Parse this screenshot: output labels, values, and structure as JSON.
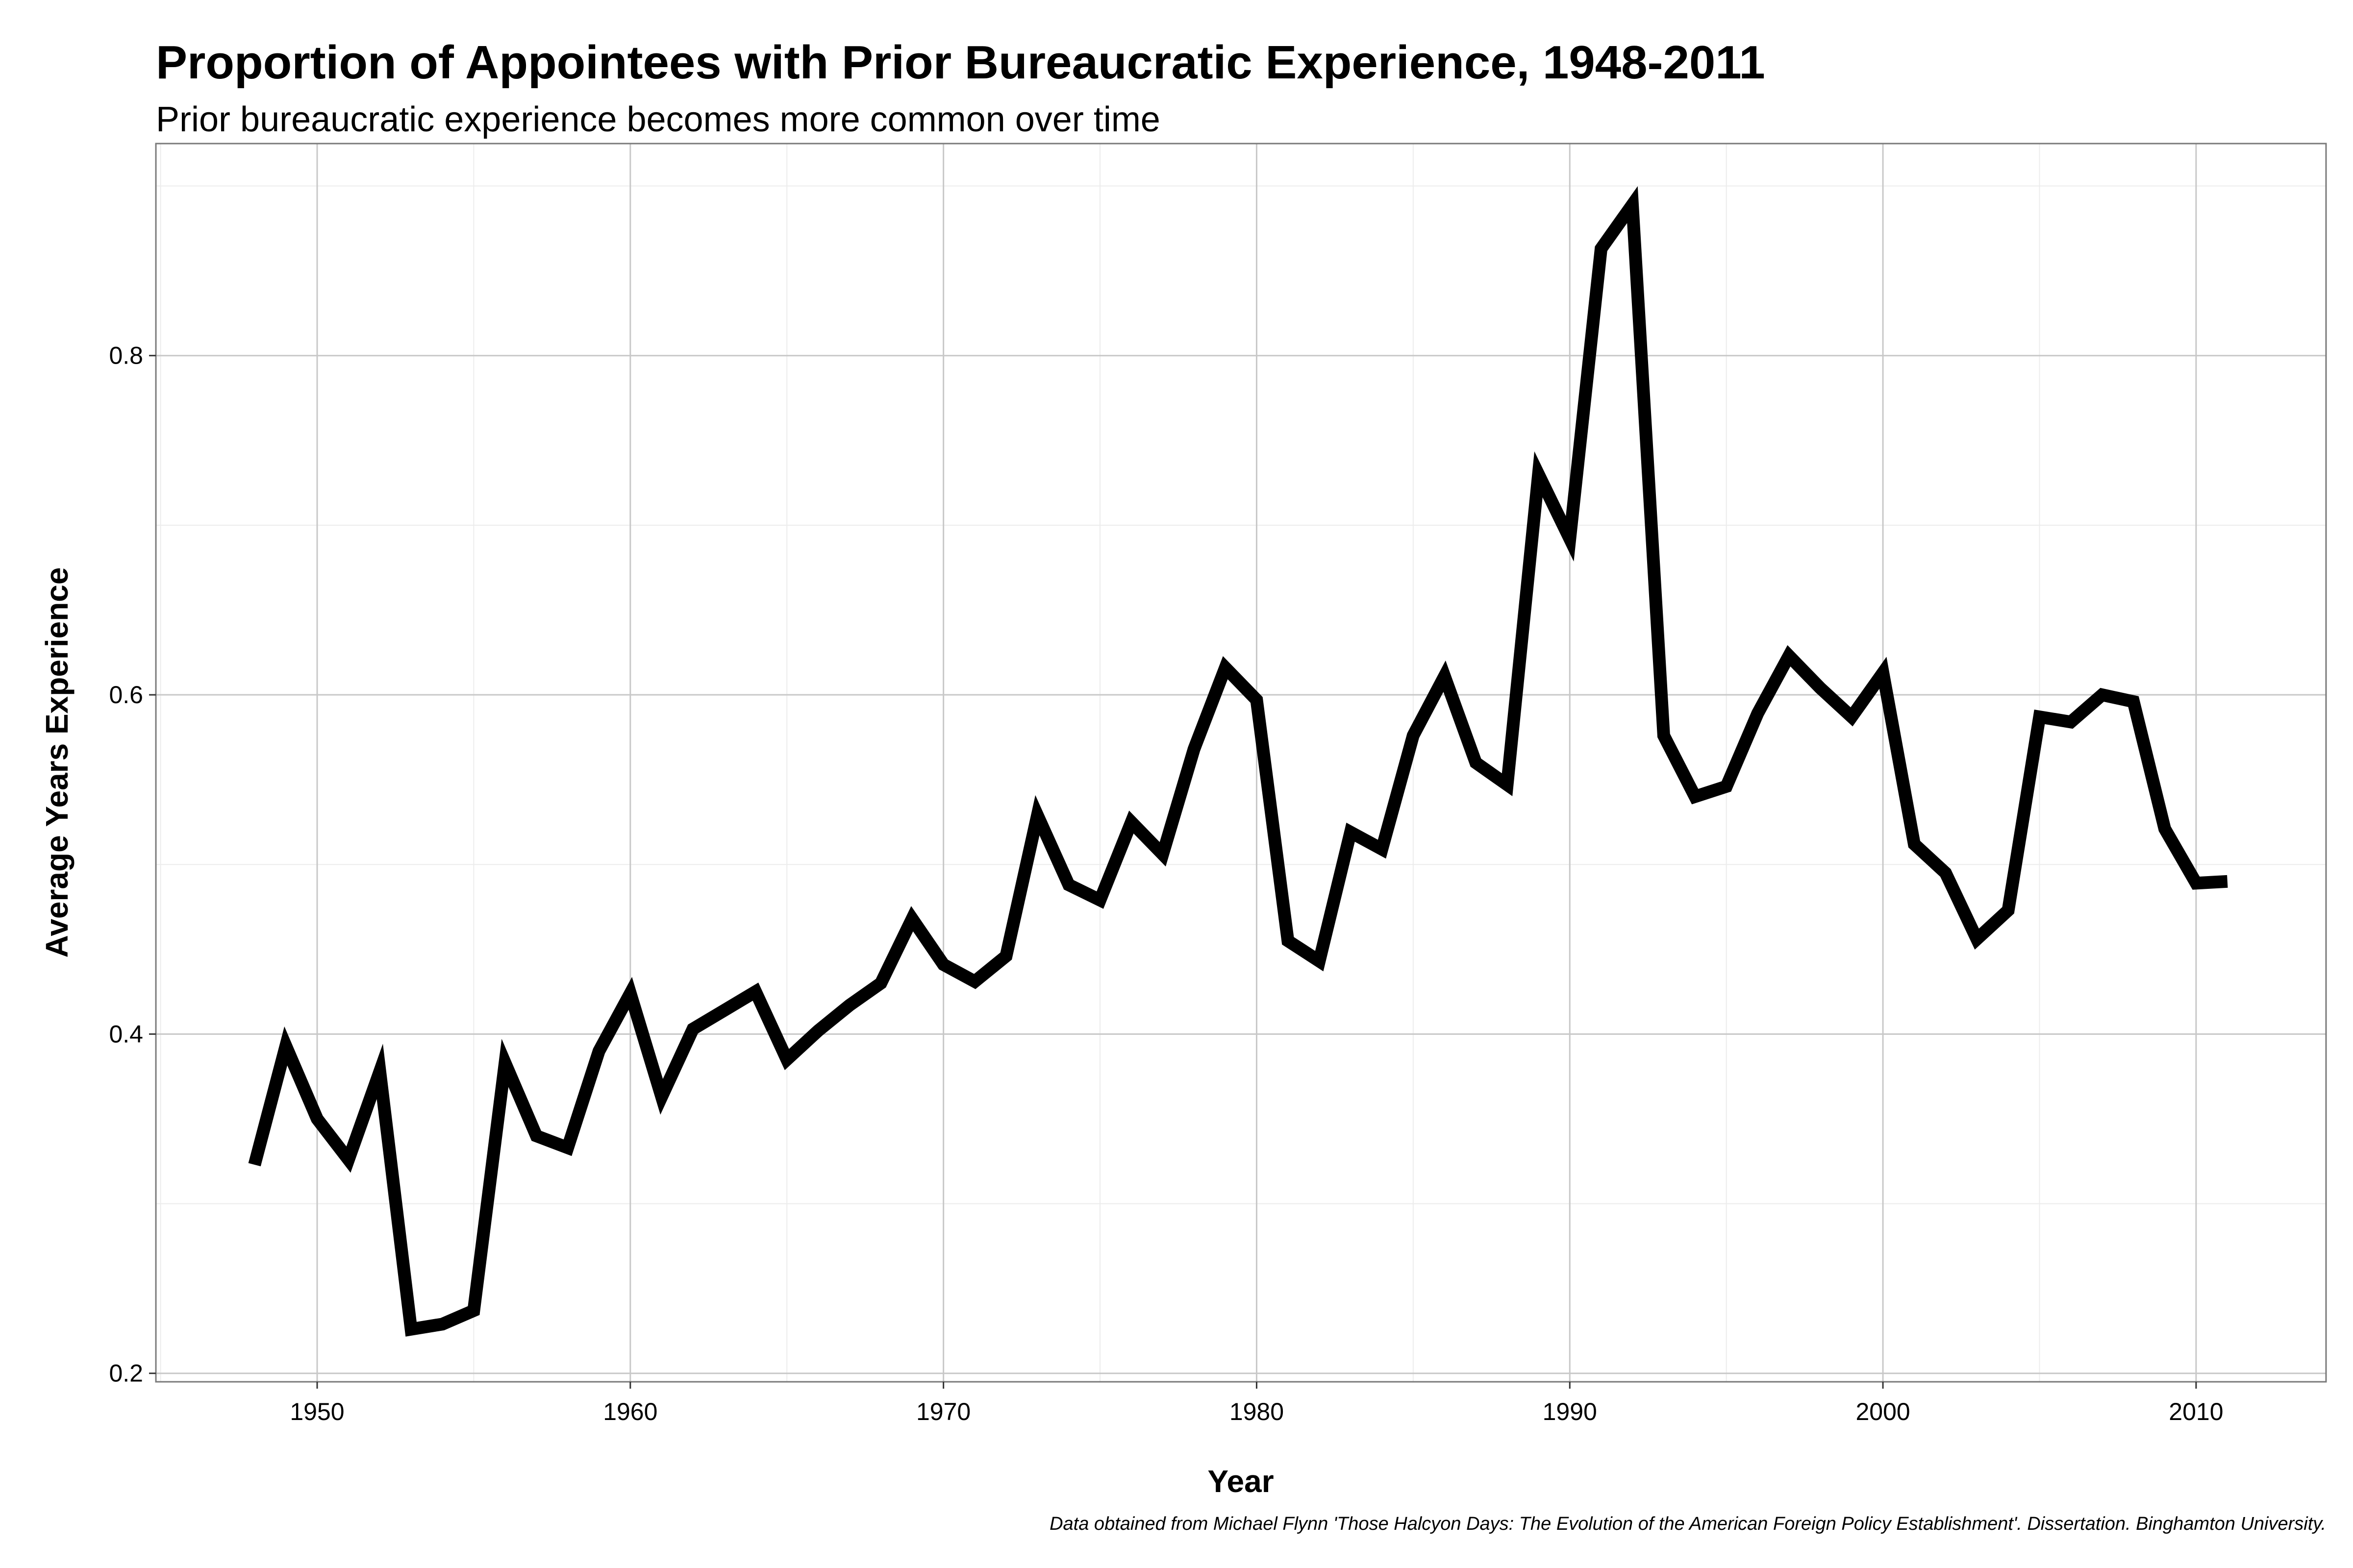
{
  "chart_data": {
    "type": "line",
    "title": "Proportion of Appointees with Prior Bureaucratic Experience, 1948-2011",
    "subtitle": "Prior bureaucratic experience becomes more common over time",
    "xlabel": "Year",
    "ylabel": "Average Years Experience",
    "caption": "Data obtained from Michael Flynn 'Those Halcyon Days: The Evolution of the American Foreign Policy Establishment'. Dissertation. Binghamton University.",
    "xlim": [
      1944.85,
      2014.15
    ],
    "ylim": [
      0.195,
      0.925
    ],
    "x_ticks": [
      "1950",
      "1960",
      "1970",
      "1980",
      "1990",
      "2000",
      "2010"
    ],
    "y_ticks": [
      "0.2",
      "0.4",
      "0.6",
      "0.8"
    ],
    "grid": true,
    "line_color": "#000000",
    "series": [
      {
        "x": [
          1948,
          1949,
          1950,
          1951,
          1952,
          1953,
          1954,
          1955,
          1956,
          1957,
          1958,
          1959,
          1960,
          1961,
          1962,
          1963,
          1964,
          1965,
          1966,
          1967,
          1968,
          1969,
          1970,
          1971,
          1972,
          1973,
          1974,
          1975,
          1976,
          1977,
          1978,
          1979,
          1980,
          1981,
          1982,
          1983,
          1984,
          1985,
          1986,
          1987,
          1988,
          1989,
          1990,
          1991,
          1992,
          1993,
          1994,
          1995,
          1996,
          1997,
          1998,
          1999,
          2000,
          2001,
          2002,
          2003,
          2004,
          2005,
          2006,
          2007,
          2008,
          2009,
          2010,
          2011
        ],
        "y": [
          0.323,
          0.393,
          0.35,
          0.326,
          0.378,
          0.226,
          0.229,
          0.237,
          0.383,
          0.34,
          0.333,
          0.39,
          0.424,
          0.363,
          0.403,
          0.414,
          0.425,
          0.385,
          0.402,
          0.417,
          0.43,
          0.468,
          0.441,
          0.431,
          0.446,
          0.529,
          0.488,
          0.479,
          0.525,
          0.506,
          0.568,
          0.616,
          0.597,
          0.455,
          0.443,
          0.519,
          0.509,
          0.576,
          0.611,
          0.56,
          0.547,
          0.73,
          0.692,
          0.863,
          0.889,
          0.576,
          0.54,
          0.546,
          0.589,
          0.623,
          0.604,
          0.587,
          0.613,
          0.512,
          0.495,
          0.456,
          0.473,
          0.587,
          0.584,
          0.6,
          0.596,
          0.521,
          0.489,
          0.49
        ]
      }
    ]
  }
}
